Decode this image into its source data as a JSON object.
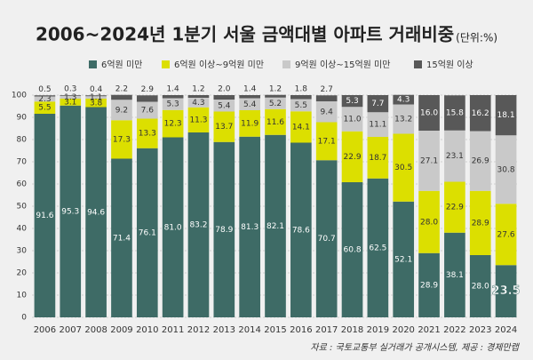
{
  "chart_data": {
    "type": "stacked-bar",
    "title": "2006~2024년 1분기 서울 금액대별 아파트 거래비중",
    "unit": "(단위:%)",
    "source": "자료 : 국토교통부 실거래가 공개시스템, 제공 : 경제만랩",
    "categories": [
      "2006",
      "2007",
      "2008",
      "2009",
      "2010",
      "2011",
      "2012",
      "2013",
      "2014",
      "2015",
      "2016",
      "2017",
      "2018",
      "2019",
      "2020",
      "2021",
      "2022",
      "2023",
      "2024"
    ],
    "series": [
      {
        "name": "6억원 미만",
        "color": "#3e6b66",
        "values": [
          91.6,
          95.3,
          94.6,
          71.4,
          76.1,
          81.0,
          83.2,
          78.9,
          81.3,
          82.1,
          78.6,
          70.7,
          60.8,
          62.5,
          52.1,
          28.9,
          38.1,
          28.0,
          23.5
        ],
        "value_labels": [
          "91.6",
          "95.3",
          "94.6",
          "71.4",
          "76.1",
          "81.0",
          "83.2",
          "78.9",
          "81.3",
          "82.1",
          "78.6",
          "70.7",
          "60.8",
          "62.5",
          "52.1",
          "28.9",
          "38.1",
          "28.0",
          "23.5"
        ]
      },
      {
        "name": "6억원 이상~9억원 미만",
        "color": "#dcdf00",
        "values": [
          5.5,
          3.1,
          3.8,
          17.3,
          13.3,
          12.3,
          11.3,
          13.7,
          11.9,
          11.6,
          14.1,
          17.1,
          22.9,
          18.7,
          30.5,
          28.0,
          22.9,
          28.9,
          27.6
        ],
        "value_labels": [
          "5.5",
          "3.1",
          "3.8",
          "17.3",
          "13.3",
          "12.3",
          "11.3",
          "13.7",
          "11.9",
          "11.6",
          "14.1",
          "17.1",
          "22.9",
          "18.7",
          "30.5",
          "28.0",
          "22.9",
          "28.9",
          "27.6"
        ]
      },
      {
        "name": "9억원 이상~15억원 미만",
        "color": "#c9c9c9",
        "values": [
          2.3,
          1.3,
          1.1,
          9.2,
          7.6,
          5.3,
          4.3,
          5.4,
          5.4,
          5.2,
          5.5,
          9.4,
          11.0,
          11.1,
          13.2,
          27.1,
          23.1,
          26.9,
          30.8
        ],
        "value_labels": [
          "2.3",
          "1.3",
          "1.1",
          "9.2",
          "7.6",
          "5.3",
          "4.3",
          "5.4",
          "5.4",
          "5.2",
          "5.5",
          "9.4",
          "11.0",
          "11.1",
          "13.2",
          "27.1",
          "23.1",
          "26.9",
          "30.8"
        ]
      },
      {
        "name": "15억원 이상",
        "color": "#585858",
        "values": [
          0.5,
          0.3,
          0.4,
          2.2,
          2.9,
          1.4,
          1.2,
          2.0,
          1.4,
          1.2,
          1.8,
          2.7,
          5.3,
          7.7,
          4.3,
          16.0,
          15.8,
          16.2,
          18.1
        ],
        "value_labels": [
          "0.5",
          "0.3",
          "0.4",
          "2.2",
          "2.9",
          "1.4",
          "1.2",
          "2.0",
          "1.4",
          "1.2",
          "1.8",
          "2.7",
          "5.3",
          "7.7",
          "4.3",
          "16.0",
          "15.8",
          "16.2",
          "18.1"
        ]
      }
    ],
    "ylim": [
      0,
      100
    ],
    "yticks": [
      0,
      10,
      20,
      30,
      40,
      50,
      60,
      70,
      80,
      90,
      100
    ],
    "grid": true,
    "legend": "top"
  }
}
